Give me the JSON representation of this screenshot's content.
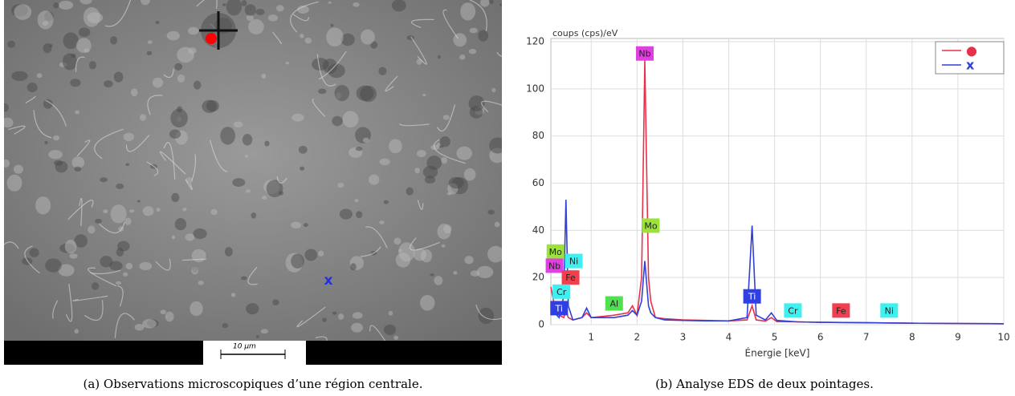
{
  "figure": {
    "image": {
      "marker_label": "x",
      "scale_bar": "10 µm"
    },
    "captions": [
      "(a) Observations microscopiques d’une région centrale.",
      "(b) Analyse EDS de deux pointages."
    ]
  },
  "chart_data": {
    "type": "line",
    "y_label": "coups (cps)/eV",
    "x_label": "Énergie [keV]",
    "x": [
      0.12,
      0.2,
      0.3,
      0.4,
      0.45,
      0.5,
      0.6,
      0.8,
      0.9,
      1.0,
      1.5,
      1.8,
      1.9,
      2.0,
      2.1,
      2.17,
      2.25,
      2.3,
      2.4,
      2.6,
      3,
      3.5,
      4,
      4.4,
      4.51,
      4.6,
      4.8,
      4.93,
      5.05,
      5.5,
      6,
      7,
      8,
      9,
      10
    ],
    "series": [
      {
        "name": "●",
        "color": "#e8304a",
        "values": [
          16,
          8,
          4,
          3,
          6,
          3,
          2,
          3,
          5,
          3,
          4,
          5,
          8,
          4,
          20,
          112,
          20,
          10,
          3,
          2.5,
          2,
          1.8,
          1.6,
          2,
          8,
          2,
          1.5,
          3,
          1.3,
          1.2,
          1,
          0.8,
          0.6,
          0.5,
          0.4
        ]
      },
      {
        "name": "x",
        "color": "#3040d8",
        "values": [
          10,
          5,
          3,
          12,
          53,
          8,
          2,
          3,
          7,
          3,
          3,
          4,
          6,
          4,
          10,
          27,
          8,
          5,
          3,
          2,
          1.8,
          1.6,
          1.6,
          3,
          42,
          4,
          2,
          5,
          1.8,
          1.2,
          1,
          0.8,
          0.6,
          0.5,
          0.4
        ]
      }
    ],
    "annotations": [
      {
        "text": "Nb",
        "x": 2.17,
        "y": 115,
        "color": "#e040e0"
      },
      {
        "text": "Mo",
        "x": 2.3,
        "y": 42,
        "color": "#9be33a"
      },
      {
        "text": "Mo",
        "x": 0.22,
        "y": 31,
        "color": "#9be33a"
      },
      {
        "text": "Nb",
        "x": 0.2,
        "y": 25,
        "color": "#e040e0"
      },
      {
        "text": "Ni",
        "x": 0.62,
        "y": 27,
        "color": "#3ff0f0"
      },
      {
        "text": "Fe",
        "x": 0.55,
        "y": 20,
        "color": "#f04050"
      },
      {
        "text": "Cr",
        "x": 0.35,
        "y": 14,
        "color": "#3ff0f0"
      },
      {
        "text": "Ti",
        "x": 0.3,
        "y": 7,
        "color": "#3040e0"
      },
      {
        "text": "Al",
        "x": 1.5,
        "y": 9,
        "color": "#50e050"
      },
      {
        "text": "Ti",
        "x": 4.51,
        "y": 12,
        "color": "#3040e0"
      },
      {
        "text": "Cr",
        "x": 5.4,
        "y": 6,
        "color": "#3ff0f0"
      },
      {
        "text": "Fe",
        "x": 6.45,
        "y": 6,
        "color": "#f04050"
      },
      {
        "text": "Ni",
        "x": 7.5,
        "y": 6,
        "color": "#3ff0f0"
      }
    ],
    "xlim": [
      0.12,
      10
    ],
    "ylim": [
      0,
      120
    ],
    "xticks": [
      1,
      2,
      3,
      4,
      5,
      6,
      7,
      8,
      9,
      10
    ],
    "yticks": [
      0,
      20,
      40,
      60,
      80,
      100,
      120
    ],
    "grid": true,
    "legend": "upper right"
  }
}
